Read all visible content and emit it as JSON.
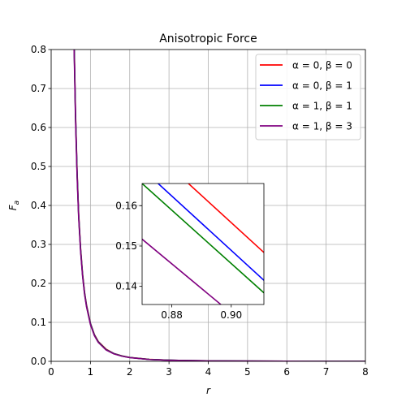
{
  "chart_data": [
    {
      "type": "line",
      "title": "Anisotropic Force",
      "xlabel": "r",
      "ylabel": "F",
      "ylabel_subscript": "a",
      "xlim": [
        0,
        8
      ],
      "ylim": [
        0,
        0.8
      ],
      "xticks": [
        "0",
        "1",
        "2",
        "3",
        "4",
        "5",
        "6",
        "7",
        "8"
      ],
      "yticks": [
        "0.0",
        "0.1",
        "0.2",
        "0.3",
        "0.4",
        "0.5",
        "0.6",
        "0.7",
        "0.8"
      ],
      "grid": true,
      "legend_position": "top-right",
      "series": [
        {
          "name": "α = 0, β = 0",
          "color": "#ff0000",
          "x": [
            0.58,
            0.62,
            0.66,
            0.7,
            0.75,
            0.8,
            0.85,
            0.9,
            1.0,
            1.1,
            1.2,
            1.4,
            1.6,
            1.8,
            2.0,
            2.5,
            3.0,
            3.5,
            4.0,
            5.0,
            6.0,
            7.0,
            8.0
          ],
          "y": [
            0.85,
            0.64,
            0.49,
            0.38,
            0.29,
            0.225,
            0.178,
            0.145,
            0.098,
            0.069,
            0.051,
            0.031,
            0.02,
            0.014,
            0.01,
            0.005,
            0.003,
            0.002,
            0.0013,
            0.0006,
            0.0003,
            0.0002,
            0.0001
          ]
        },
        {
          "name": "α = 0, β = 1",
          "color": "#0000ff",
          "x": [
            0.58,
            0.62,
            0.66,
            0.7,
            0.75,
            0.8,
            0.85,
            0.9,
            1.0,
            1.1,
            1.2,
            1.4,
            1.6,
            1.8,
            2.0,
            2.5,
            3.0,
            3.5,
            4.0,
            5.0,
            6.0,
            7.0,
            8.0
          ],
          "y": [
            0.84,
            0.635,
            0.485,
            0.376,
            0.287,
            0.222,
            0.176,
            0.143,
            0.097,
            0.068,
            0.05,
            0.03,
            0.0198,
            0.0138,
            0.0099,
            0.0049,
            0.0029,
            0.002,
            0.0013,
            0.0006,
            0.0003,
            0.0002,
            0.0001
          ]
        },
        {
          "name": "α = 1, β = 1",
          "color": "#008000",
          "x": [
            0.58,
            0.62,
            0.66,
            0.7,
            0.75,
            0.8,
            0.85,
            0.9,
            1.0,
            1.1,
            1.2,
            1.4,
            1.6,
            1.8,
            2.0,
            2.5,
            3.0,
            3.5,
            4.0,
            5.0,
            6.0,
            7.0,
            8.0
          ],
          "y": [
            0.835,
            0.63,
            0.482,
            0.373,
            0.285,
            0.221,
            0.175,
            0.142,
            0.096,
            0.0675,
            0.0497,
            0.0298,
            0.0196,
            0.0137,
            0.0098,
            0.0049,
            0.0029,
            0.0019,
            0.0013,
            0.0006,
            0.0003,
            0.0002,
            0.0001
          ]
        },
        {
          "name": "α = 1, β = 3",
          "color": "#800080",
          "x": [
            0.58,
            0.62,
            0.66,
            0.7,
            0.75,
            0.8,
            0.85,
            0.9,
            1.0,
            1.1,
            1.2,
            1.4,
            1.6,
            1.8,
            2.0,
            2.5,
            3.0,
            3.5,
            4.0,
            5.0,
            6.0,
            7.0,
            8.0
          ],
          "y": [
            0.82,
            0.62,
            0.475,
            0.368,
            0.281,
            0.218,
            0.172,
            0.14,
            0.094,
            0.066,
            0.0485,
            0.029,
            0.019,
            0.0133,
            0.0095,
            0.0047,
            0.0028,
            0.0019,
            0.0012,
            0.0006,
            0.0003,
            0.0002,
            0.0001
          ]
        }
      ]
    },
    {
      "type": "line",
      "title": "",
      "role": "inset",
      "xlim": [
        0.87,
        0.911
      ],
      "ylim": [
        0.1355,
        0.1655
      ],
      "xticks": [
        "0.88",
        "0.90"
      ],
      "yticks": [
        "0.14",
        "0.15",
        "0.16"
      ],
      "grid": false,
      "series": [
        {
          "name": "α = 0, β = 0",
          "color": "#ff0000",
          "x": [
            0.8856,
            0.911
          ],
          "y": [
            0.1655,
            0.1484
          ]
        },
        {
          "name": "α = 0, β = 1",
          "color": "#0000ff",
          "x": [
            0.8754,
            0.911
          ],
          "y": [
            0.1655,
            0.1415
          ]
        },
        {
          "name": "α = 1, β = 1",
          "color": "#008000",
          "x": [
            0.87,
            0.911
          ],
          "y": [
            0.1655,
            0.1384
          ]
        },
        {
          "name": "α = 1, β = 3",
          "color": "#800080",
          "x": [
            0.87,
            0.8965
          ],
          "y": [
            0.1517,
            0.1355
          ]
        }
      ]
    }
  ]
}
